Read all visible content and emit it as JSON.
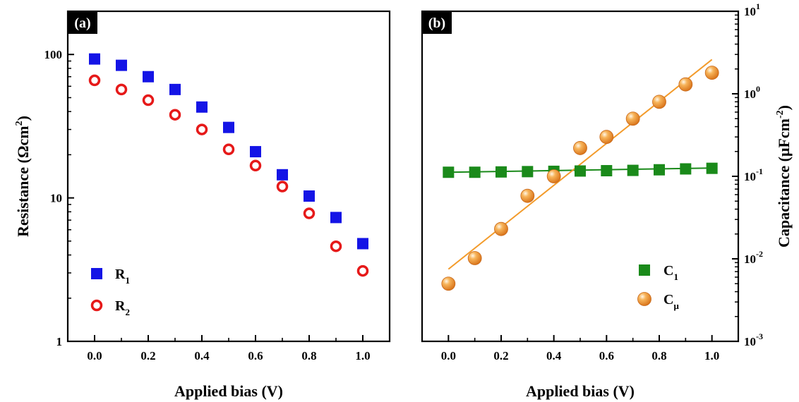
{
  "chart_data": [
    {
      "panel": "(a)",
      "type": "scatter",
      "xlabel": "Applied bias (V)",
      "ylabel_parts": [
        "Resistance (Ωcm",
        "2",
        ")"
      ],
      "yscale": "log",
      "xlim": [
        -0.1,
        1.1
      ],
      "ylim": [
        1,
        200
      ],
      "xticks": [
        "0.0",
        "0.2",
        "0.4",
        "0.6",
        "0.8",
        "1.0"
      ],
      "yticks": [
        {
          "value": 1,
          "label": "1"
        },
        {
          "value": 10,
          "label": "10"
        },
        {
          "value": 100,
          "label": "100"
        }
      ],
      "legend_position": "bottom-left",
      "series": [
        {
          "name_parts": [
            "R",
            "1"
          ],
          "marker": "filled-square",
          "color": "#1414e6",
          "x": [
            0.0,
            0.1,
            0.2,
            0.3,
            0.4,
            0.5,
            0.6,
            0.7,
            0.8,
            0.9,
            1.0
          ],
          "y": [
            93,
            84,
            70,
            57,
            43,
            31,
            21,
            14.5,
            10.3,
            7.3,
            4.8
          ]
        },
        {
          "name_parts": [
            "R",
            "2"
          ],
          "marker": "open-circle",
          "color": "#e61919",
          "x": [
            0.0,
            0.1,
            0.2,
            0.3,
            0.4,
            0.5,
            0.6,
            0.7,
            0.8,
            0.9,
            1.0
          ],
          "y": [
            66,
            57,
            48,
            38,
            30,
            21.8,
            16.8,
            12,
            7.8,
            4.6,
            3.1
          ]
        }
      ]
    },
    {
      "panel": "(b)",
      "type": "scatter",
      "xlabel": "Applied bias (V)",
      "ylabel_parts": [
        "Capacitance (μFcm",
        "-2",
        ")"
      ],
      "yscale": "log",
      "yaxis_side": "right",
      "xlim": [
        -0.1,
        1.1
      ],
      "ylim": [
        0.001,
        10
      ],
      "xticks": [
        "0.0",
        "0.2",
        "0.4",
        "0.6",
        "0.8",
        "1.0"
      ],
      "yticks": [
        {
          "value": 0.001,
          "base": "10",
          "exp": "-3"
        },
        {
          "value": 0.01,
          "base": "10",
          "exp": "-2"
        },
        {
          "value": 0.1,
          "base": "10",
          "exp": "-1"
        },
        {
          "value": 1,
          "base": "10",
          "exp": "0"
        },
        {
          "value": 10,
          "base": "10",
          "exp": "1"
        }
      ],
      "legend_position": "bottom-right",
      "series": [
        {
          "name_parts": [
            "C",
            "1"
          ],
          "marker": "filled-square",
          "color": "#1a8a1a",
          "x": [
            0.0,
            0.1,
            0.2,
            0.3,
            0.4,
            0.5,
            0.6,
            0.7,
            0.8,
            0.9,
            1.0
          ],
          "y": [
            0.112,
            0.112,
            0.113,
            0.114,
            0.115,
            0.116,
            0.117,
            0.118,
            0.12,
            0.123,
            0.125
          ],
          "fit": {
            "x": [
              0.0,
              1.0
            ],
            "y": [
              0.112,
              0.126
            ]
          }
        },
        {
          "name_parts": [
            "C",
            "μ"
          ],
          "marker": "filled-sphere",
          "color": "#f39b2b",
          "x": [
            0.0,
            0.1,
            0.2,
            0.3,
            0.4,
            0.5,
            0.6,
            0.7,
            0.8,
            0.9,
            1.0
          ],
          "y": [
            0.005,
            0.0102,
            0.023,
            0.058,
            0.1,
            0.22,
            0.3,
            0.5,
            0.8,
            1.3,
            1.8
          ],
          "fit": {
            "x": [
              0.0,
              1.0
            ],
            "y": [
              0.0075,
              2.6
            ]
          }
        }
      ]
    }
  ]
}
